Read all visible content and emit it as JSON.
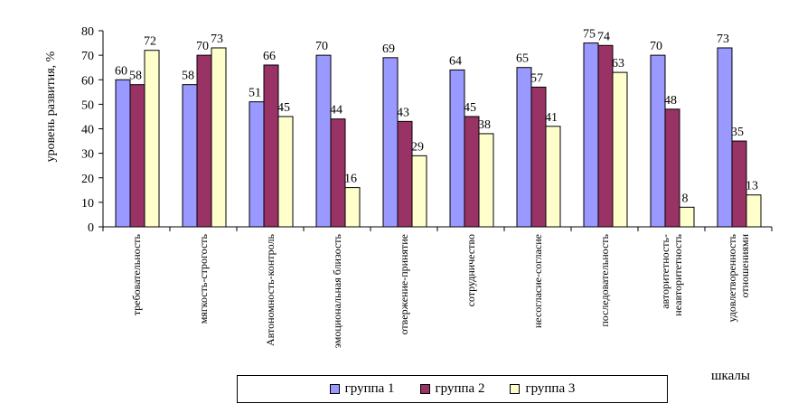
{
  "chart_data": {
    "type": "bar",
    "title": "",
    "ylabel": "уровень развития, %",
    "xlabel": "шкалы",
    "ylim": [
      0,
      80
    ],
    "yticks": [
      0,
      10,
      20,
      30,
      40,
      50,
      60,
      70,
      80
    ],
    "grid": false,
    "legend_position": "bottom",
    "categories": [
      "требовательность",
      "мягкость-строгость",
      "Автономность-контроль",
      "эмоциональная близость",
      "отвержение-принятие",
      "сотрудничество",
      "несогласие-согласие",
      "последовательность",
      "авторитетность-неавторитетность",
      "удовлетворенность отношениями"
    ],
    "category_lines": [
      [
        "требовательность"
      ],
      [
        "мягкость-строгость"
      ],
      [
        "Автономность-контроль"
      ],
      [
        "эмоциональная близость"
      ],
      [
        "отвержение-принятие"
      ],
      [
        "сотрудничество"
      ],
      [
        "несогласие-согласие"
      ],
      [
        "последовательность"
      ],
      [
        "авторитетность-",
        "неавторитетность"
      ],
      [
        "удовлетворенность",
        "отношениями"
      ]
    ],
    "series": [
      {
        "name": "группа 1",
        "color": "#9999FF",
        "values": [
          60,
          58,
          51,
          70,
          69,
          64,
          65,
          75,
          70,
          73
        ]
      },
      {
        "name": "группа 2",
        "color": "#993366",
        "values": [
          58,
          70,
          66,
          44,
          43,
          45,
          57,
          74,
          48,
          35
        ]
      },
      {
        "name": "группа 3",
        "color": "#FFFFCC",
        "values": [
          72,
          73,
          45,
          16,
          29,
          38,
          41,
          63,
          8,
          13
        ]
      }
    ]
  }
}
